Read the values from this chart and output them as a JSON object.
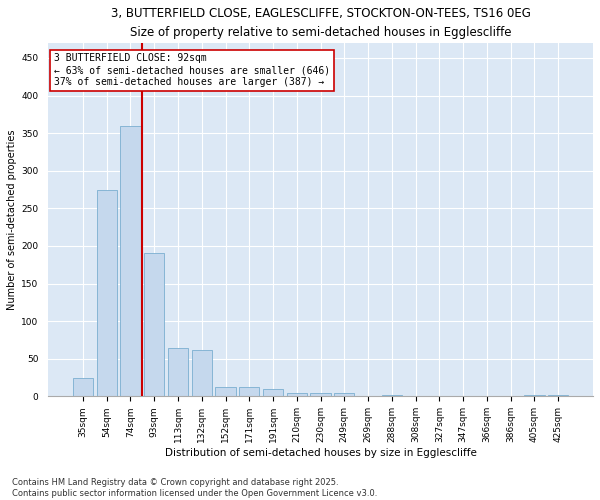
{
  "title1": "3, BUTTERFIELD CLOSE, EAGLESCLIFFE, STOCKTON-ON-TEES, TS16 0EG",
  "title2": "Size of property relative to semi-detached houses in Egglescliffe",
  "xlabel": "Distribution of semi-detached houses by size in Egglescliffe",
  "ylabel": "Number of semi-detached properties",
  "categories": [
    "35sqm",
    "54sqm",
    "74sqm",
    "93sqm",
    "113sqm",
    "132sqm",
    "152sqm",
    "171sqm",
    "191sqm",
    "210sqm",
    "230sqm",
    "249sqm",
    "269sqm",
    "288sqm",
    "308sqm",
    "327sqm",
    "347sqm",
    "366sqm",
    "386sqm",
    "405sqm",
    "425sqm"
  ],
  "values": [
    25,
    275,
    360,
    190,
    65,
    62,
    12,
    12,
    10,
    5,
    5,
    5,
    0,
    2,
    0,
    0,
    0,
    0,
    0,
    2,
    2
  ],
  "bar_color": "#c5d8ed",
  "bar_edge_color": "#7aaed0",
  "vline_pos": 2.5,
  "vline_color": "#cc0000",
  "annotation_text": "3 BUTTERFIELD CLOSE: 92sqm\n← 63% of semi-detached houses are smaller (646)\n37% of semi-detached houses are larger (387) →",
  "annotation_box_color": "#ffffff",
  "annotation_box_edge": "#cc0000",
  "ylim": [
    0,
    470
  ],
  "yticks": [
    0,
    50,
    100,
    150,
    200,
    250,
    300,
    350,
    400,
    450
  ],
  "bg_color": "#dce8f5",
  "footer_text": "Contains HM Land Registry data © Crown copyright and database right 2025.\nContains public sector information licensed under the Open Government Licence v3.0.",
  "title_fontsize": 8.5,
  "subtitle_fontsize": 8,
  "annotation_fontsize": 7,
  "footer_fontsize": 6,
  "xlabel_fontsize": 7.5,
  "ylabel_fontsize": 7,
  "tick_fontsize": 6.5
}
